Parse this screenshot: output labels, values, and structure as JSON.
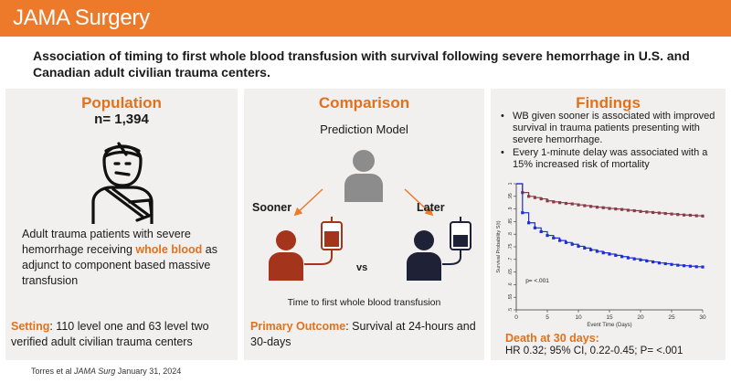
{
  "header": {
    "brand": "JAMA Surgery"
  },
  "title": "Association of timing to first whole blood transfusion with survival following  severe hemorrhage in U.S. and Canadian adult civilian trauma centers.",
  "population": {
    "heading": "Population",
    "n": "n= 1,394",
    "desc_pre": "Adult trauma patients with severe hemorrhage receiving ",
    "desc_highlight": "whole blood",
    "desc_post": " as adjunct to component based massive transfusion",
    "setting_label": "Setting",
    "setting_text": ": 110 level one and 63 level two verified adult civilian trauma centers"
  },
  "comparison": {
    "heading": "Comparison",
    "prediction_model": "Prediction Model",
    "sooner": "Sooner",
    "later": "Later",
    "vs": "vs",
    "time_label": "Time to first whole blood transfusion",
    "outcome_label": "Primary Outcome",
    "outcome_text": ": Survival at 24-hours and 30-days"
  },
  "findings": {
    "heading": "Findings",
    "bullets": [
      "WB given sooner is associated with improved survival in trauma patients presenting with severe hemorrhage.",
      "Every 1-minute delay was associated with a 15% increased risk of mortality"
    ],
    "death_heading": "Death at 30 days:",
    "death_stats": "HR 0.32; 95% CI, 0.22-0.45; P= <.001"
  },
  "chart_data": {
    "type": "line",
    "xlabel": "Event Time (Days)",
    "ylabel": "Survival Probability S(t)",
    "xlim": [
      0,
      30
    ],
    "ylim": [
      0.5,
      1.0
    ],
    "xticks": [
      "0",
      "5",
      "10",
      "15",
      "20",
      "25",
      "30"
    ],
    "yticks": [
      ".5",
      ".55",
      ".6",
      ".65",
      ".7",
      ".75",
      ".8",
      ".85",
      ".9",
      ".95",
      "1"
    ],
    "annotation": "p= <.001",
    "series": [
      {
        "name": "Sooner",
        "color": "#8b3a48",
        "x": [
          0,
          1,
          2,
          3,
          4,
          5,
          6,
          7,
          8,
          9,
          10,
          11,
          12,
          13,
          14,
          15,
          16,
          17,
          18,
          19,
          20,
          21,
          22,
          23,
          24,
          25,
          26,
          27,
          28,
          29,
          30
        ],
        "values": [
          1.0,
          0.965,
          0.95,
          0.945,
          0.94,
          0.932,
          0.928,
          0.925,
          0.922,
          0.92,
          0.916,
          0.913,
          0.91,
          0.907,
          0.905,
          0.902,
          0.9,
          0.898,
          0.895,
          0.893,
          0.89,
          0.888,
          0.886,
          0.884,
          0.882,
          0.88,
          0.878,
          0.876,
          0.875,
          0.873,
          0.872
        ]
      },
      {
        "name": "Later",
        "color": "#1f2fd6",
        "x": [
          0,
          1,
          2,
          3,
          4,
          5,
          6,
          7,
          8,
          9,
          10,
          11,
          12,
          13,
          14,
          15,
          16,
          17,
          18,
          19,
          20,
          21,
          22,
          23,
          24,
          25,
          26,
          27,
          28,
          29,
          30
        ],
        "values": [
          1.0,
          0.885,
          0.845,
          0.825,
          0.81,
          0.795,
          0.785,
          0.775,
          0.767,
          0.76,
          0.752,
          0.745,
          0.738,
          0.732,
          0.726,
          0.721,
          0.716,
          0.711,
          0.706,
          0.702,
          0.698,
          0.694,
          0.69,
          0.686,
          0.683,
          0.68,
          0.677,
          0.675,
          0.673,
          0.671,
          0.67
        ]
      }
    ]
  },
  "colors": {
    "header": "#ec7a2a",
    "accent": "#e0721f",
    "panel": "#f1f0ee",
    "sooner_person": "#a4341c",
    "later_person": "#1f2236",
    "model_person": "#8c8c8c"
  },
  "citation": {
    "text": "Torres et al ",
    "journal": "JAMA Surg",
    "date": " January 31, 2024"
  }
}
